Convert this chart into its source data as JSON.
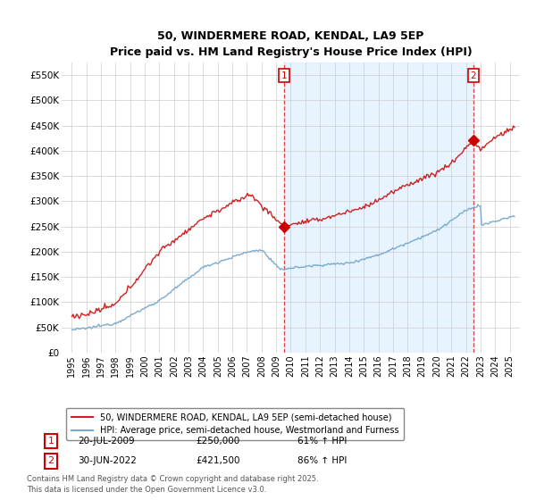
{
  "title1": "50, WINDERMERE ROAD, KENDAL, LA9 5EP",
  "title2": "Price paid vs. HM Land Registry's House Price Index (HPI)",
  "ylim": [
    0,
    575000
  ],
  "yticks": [
    0,
    50000,
    100000,
    150000,
    200000,
    250000,
    300000,
    350000,
    400000,
    450000,
    500000,
    550000
  ],
  "ytick_labels": [
    "£0",
    "£50K",
    "£100K",
    "£150K",
    "£200K",
    "£250K",
    "£300K",
    "£350K",
    "£400K",
    "£450K",
    "£500K",
    "£550K"
  ],
  "legend1": "50, WINDERMERE ROAD, KENDAL, LA9 5EP (semi-detached house)",
  "legend2": "HPI: Average price, semi-detached house, Westmorland and Furness",
  "sale1_date": "20-JUL-2009",
  "sale1_price": "£250,000",
  "sale1_hpi": "61% ↑ HPI",
  "sale2_date": "30-JUN-2022",
  "sale2_price": "£421,500",
  "sale2_hpi": "86% ↑ HPI",
  "footnote": "Contains HM Land Registry data © Crown copyright and database right 2025.\nThis data is licensed under the Open Government Licence v3.0.",
  "sale1_color": "#cc0000",
  "sale2_color": "#cc0000",
  "hpi_color": "#7aabcf",
  "property_color": "#cc2222",
  "vline_color": "#dd4444",
  "shade_color": "#ddeeff",
  "background_color": "#ffffff",
  "grid_color": "#cccccc",
  "sale1_x": 2009.54,
  "sale1_y": 250000,
  "sale2_x": 2022.5,
  "sale2_y": 421500,
  "xlim_left": 1994.3,
  "xlim_right": 2025.7
}
